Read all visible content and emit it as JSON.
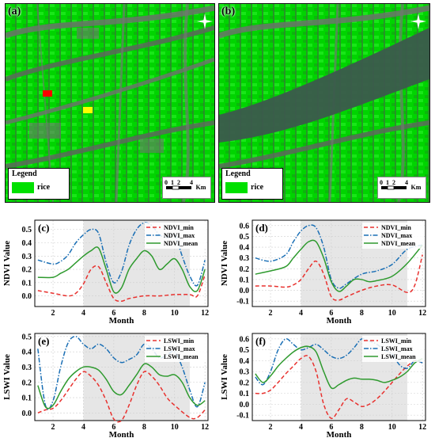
{
  "maps": [
    {
      "label": "(a)",
      "legend_title": "Legend",
      "legend_item": "rice",
      "scale_ticks": [
        "0",
        "1",
        "2",
        "4"
      ],
      "scale_unit": "Km",
      "colors": {
        "rice": "#00e000",
        "marker_red": "#ff0000",
        "marker_yellow": "#ffff00"
      }
    },
    {
      "label": "(b)",
      "legend_title": "Legend",
      "legend_item": "rice",
      "scale_ticks": [
        "0",
        "1",
        "2",
        "4"
      ],
      "scale_unit": "Km",
      "colors": {
        "rice": "#00e000"
      }
    }
  ],
  "chart_data": [
    {
      "type": "line",
      "label": "(c)",
      "xlabel": "Month",
      "ylabel": "NDVI Value",
      "xlim": [
        0.8,
        12.2
      ],
      "ylim": [
        -0.08,
        0.57
      ],
      "xticks": [
        2,
        4,
        6,
        8,
        10,
        12
      ],
      "yticks": [
        0.0,
        0.1,
        0.2,
        0.3,
        0.4,
        0.5
      ],
      "shaded": [
        4,
        11
      ],
      "legend": "top-right",
      "series": [
        {
          "name": "NDVI_min",
          "color": "#e8312e",
          "dash": "dash",
          "x": [
            1,
            2,
            3,
            3.5,
            4,
            4.5,
            5,
            5.5,
            6,
            6.5,
            7,
            8,
            9,
            10,
            11,
            11.5,
            12
          ],
          "y": [
            0.04,
            0.02,
            0.0,
            0.02,
            0.09,
            0.2,
            0.22,
            0.1,
            -0.02,
            -0.04,
            -0.02,
            0.0,
            0.0,
            0.01,
            0.01,
            0.0,
            0.16
          ]
        },
        {
          "name": "NDVI_max",
          "color": "#1a6fb5",
          "dash": "dashdot",
          "x": [
            1,
            2,
            2.5,
            3,
            3.5,
            4,
            4.5,
            5,
            5.5,
            6,
            6.5,
            7,
            7.5,
            8,
            8.5,
            9,
            9.5,
            10,
            10.5,
            11,
            11.5,
            12
          ],
          "y": [
            0.27,
            0.24,
            0.26,
            0.31,
            0.4,
            0.46,
            0.5,
            0.47,
            0.25,
            0.1,
            0.18,
            0.38,
            0.5,
            0.55,
            0.53,
            0.46,
            0.44,
            0.46,
            0.3,
            0.15,
            0.08,
            0.27
          ]
        },
        {
          "name": "NDVI_mean",
          "color": "#2e9a2e",
          "dash": "solid",
          "x": [
            1,
            2,
            2.5,
            3,
            3.5,
            4,
            4.5,
            5,
            5.5,
            6,
            6.5,
            7,
            7.5,
            8,
            8.5,
            9,
            9.5,
            10,
            10.5,
            11,
            11.5,
            12
          ],
          "y": [
            0.14,
            0.14,
            0.17,
            0.2,
            0.25,
            0.3,
            0.34,
            0.36,
            0.2,
            0.03,
            0.06,
            0.2,
            0.28,
            0.34,
            0.3,
            0.2,
            0.24,
            0.28,
            0.2,
            0.07,
            0.04,
            0.2
          ]
        }
      ]
    },
    {
      "type": "line",
      "label": "(d)",
      "xlabel": "Month",
      "ylabel": "NDVI Value",
      "xlim": [
        0.8,
        12.2
      ],
      "ylim": [
        -0.15,
        0.65
      ],
      "xticks": [
        2,
        4,
        6,
        8,
        10,
        12
      ],
      "yticks": [
        -0.1,
        0.0,
        0.1,
        0.2,
        0.3,
        0.4,
        0.5,
        0.6
      ],
      "shaded": [
        4,
        11
      ],
      "legend": "top-right",
      "series": [
        {
          "name": "NDVI_min",
          "color": "#e8312e",
          "dash": "dash",
          "x": [
            1,
            2,
            3,
            3.5,
            4,
            4.5,
            5,
            5.5,
            6,
            6.5,
            7,
            8,
            9,
            10,
            11,
            11.5,
            12
          ],
          "y": [
            0.04,
            0.04,
            0.03,
            0.05,
            0.1,
            0.2,
            0.27,
            0.15,
            -0.06,
            -0.09,
            -0.06,
            0.0,
            0.04,
            0.05,
            -0.02,
            0.05,
            0.33
          ]
        },
        {
          "name": "NDVI_max",
          "color": "#1a6fb5",
          "dash": "dashdot",
          "x": [
            1,
            2,
            3,
            3.5,
            4,
            4.5,
            5,
            5.5,
            6,
            6.5,
            7,
            8,
            9,
            10,
            11,
            12
          ],
          "y": [
            0.3,
            0.27,
            0.33,
            0.45,
            0.55,
            0.6,
            0.58,
            0.4,
            0.1,
            0.02,
            0.06,
            0.15,
            0.18,
            0.24,
            0.38,
            0.42
          ]
        },
        {
          "name": "NDVI_mean",
          "color": "#2e9a2e",
          "dash": "solid",
          "x": [
            1,
            2,
            3,
            3.5,
            4,
            4.5,
            5,
            5.5,
            6,
            6.5,
            7,
            7.5,
            8,
            8.5,
            9,
            10,
            11,
            12
          ],
          "y": [
            0.15,
            0.18,
            0.22,
            0.3,
            0.38,
            0.45,
            0.45,
            0.3,
            0.08,
            -0.01,
            0.04,
            0.1,
            0.1,
            0.08,
            0.09,
            0.13,
            0.25,
            0.42
          ]
        }
      ]
    },
    {
      "type": "line",
      "label": "(e)",
      "xlabel": "Month",
      "ylabel": "LSWI Value",
      "xlim": [
        0.8,
        12.2
      ],
      "ylim": [
        -0.05,
        0.52
      ],
      "xticks": [
        2,
        4,
        6,
        8,
        10,
        12
      ],
      "yticks": [
        0.0,
        0.1,
        0.2,
        0.3,
        0.4,
        0.5
      ],
      "shaded": [
        4,
        11
      ],
      "legend": "top-right",
      "series": [
        {
          "name": "LSWI_min",
          "color": "#e8312e",
          "dash": "dash",
          "x": [
            1,
            1.5,
            2,
            2.5,
            3,
            3.5,
            4,
            4.5,
            5,
            5.5,
            6,
            6.5,
            7,
            7.5,
            8,
            8.5,
            9,
            9.5,
            10,
            11,
            11.5,
            12
          ],
          "y": [
            0.0,
            0.02,
            0.03,
            0.08,
            0.15,
            0.22,
            0.27,
            0.24,
            0.18,
            0.08,
            -0.04,
            -0.05,
            0.05,
            0.18,
            0.27,
            0.24,
            0.18,
            0.1,
            0.05,
            -0.03,
            -0.03,
            0.02
          ]
        },
        {
          "name": "LSWI_max",
          "color": "#1a6fb5",
          "dash": "dashdot",
          "x": [
            1,
            1.5,
            2,
            2.5,
            3,
            3.5,
            4,
            4.5,
            5,
            5.5,
            6,
            6.5,
            7,
            7.5,
            8,
            8.5,
            9,
            9.5,
            10,
            10.5,
            11,
            11.5,
            12
          ],
          "y": [
            0.42,
            0.05,
            0.08,
            0.3,
            0.46,
            0.5,
            0.45,
            0.42,
            0.45,
            0.42,
            0.36,
            0.33,
            0.35,
            0.38,
            0.45,
            0.42,
            0.36,
            0.38,
            0.4,
            0.3,
            0.15,
            0.04,
            0.2
          ]
        },
        {
          "name": "LSWI_mean",
          "color": "#2e9a2e",
          "dash": "solid",
          "x": [
            1,
            1.5,
            2,
            2.5,
            3,
            3.5,
            4,
            4.5,
            5,
            5.5,
            6,
            6.5,
            7,
            7.5,
            8,
            8.5,
            9,
            9.5,
            10,
            10.5,
            11,
            11.5,
            12
          ],
          "y": [
            0.18,
            0.04,
            0.05,
            0.14,
            0.22,
            0.27,
            0.3,
            0.3,
            0.28,
            0.22,
            0.14,
            0.12,
            0.18,
            0.25,
            0.32,
            0.3,
            0.25,
            0.24,
            0.25,
            0.2,
            0.1,
            0.05,
            0.08
          ]
        }
      ]
    },
    {
      "type": "line",
      "label": "(f)",
      "xlabel": "Month",
      "ylabel": "LSWI Value",
      "xlim": [
        0.8,
        12.2
      ],
      "ylim": [
        -0.15,
        0.65
      ],
      "xticks": [
        2,
        4,
        6,
        8,
        10,
        12
      ],
      "yticks": [
        -0.1,
        0.0,
        0.1,
        0.2,
        0.3,
        0.4,
        0.5,
        0.6
      ],
      "shaded": [
        4,
        11
      ],
      "legend": "top-right",
      "series": [
        {
          "name": "LSWI_min",
          "color": "#e8312e",
          "dash": "dash",
          "x": [
            1,
            1.5,
            2,
            2.5,
            3,
            3.5,
            4,
            4.5,
            5,
            5.5,
            6,
            6.5,
            7,
            7.5,
            8,
            8.5,
            9,
            9.5,
            10,
            10.5,
            11,
            11.5,
            12
          ],
          "y": [
            0.1,
            0.1,
            0.13,
            0.2,
            0.28,
            0.35,
            0.42,
            0.44,
            0.3,
            0.0,
            -0.13,
            -0.05,
            0.05,
            0.02,
            -0.02,
            0.0,
            0.05,
            0.12,
            0.2,
            0.28,
            0.35,
            0.4,
            0.38
          ]
        },
        {
          "name": "LSWI_max",
          "color": "#1a6fb5",
          "dash": "dashdot",
          "x": [
            1,
            1.5,
            2,
            2.5,
            3,
            3.5,
            4,
            4.5,
            5,
            5.5,
            6,
            6.5,
            7,
            7.5,
            8,
            8.5,
            9,
            9.5,
            10,
            10.5,
            11,
            11.5,
            12
          ],
          "y": [
            0.25,
            0.18,
            0.3,
            0.5,
            0.6,
            0.55,
            0.5,
            0.52,
            0.55,
            0.5,
            0.44,
            0.42,
            0.45,
            0.52,
            0.6,
            0.58,
            0.55,
            0.5,
            0.46,
            0.36,
            0.33,
            0.4,
            0.38
          ]
        },
        {
          "name": "LSWI_mean",
          "color": "#2e9a2e",
          "dash": "solid",
          "x": [
            1,
            1.5,
            2,
            2.5,
            3,
            3.5,
            4,
            4.5,
            5,
            5.5,
            6,
            6.5,
            7,
            7.5,
            8,
            8.5,
            9,
            9.5,
            10,
            10.5,
            11,
            11.5,
            12
          ],
          "y": [
            0.28,
            0.2,
            0.26,
            0.35,
            0.42,
            0.48,
            0.52,
            0.53,
            0.48,
            0.3,
            0.15,
            0.18,
            0.22,
            0.24,
            0.23,
            0.23,
            0.22,
            0.2,
            0.22,
            0.25,
            0.3,
            0.38,
            0.42
          ]
        }
      ]
    }
  ]
}
